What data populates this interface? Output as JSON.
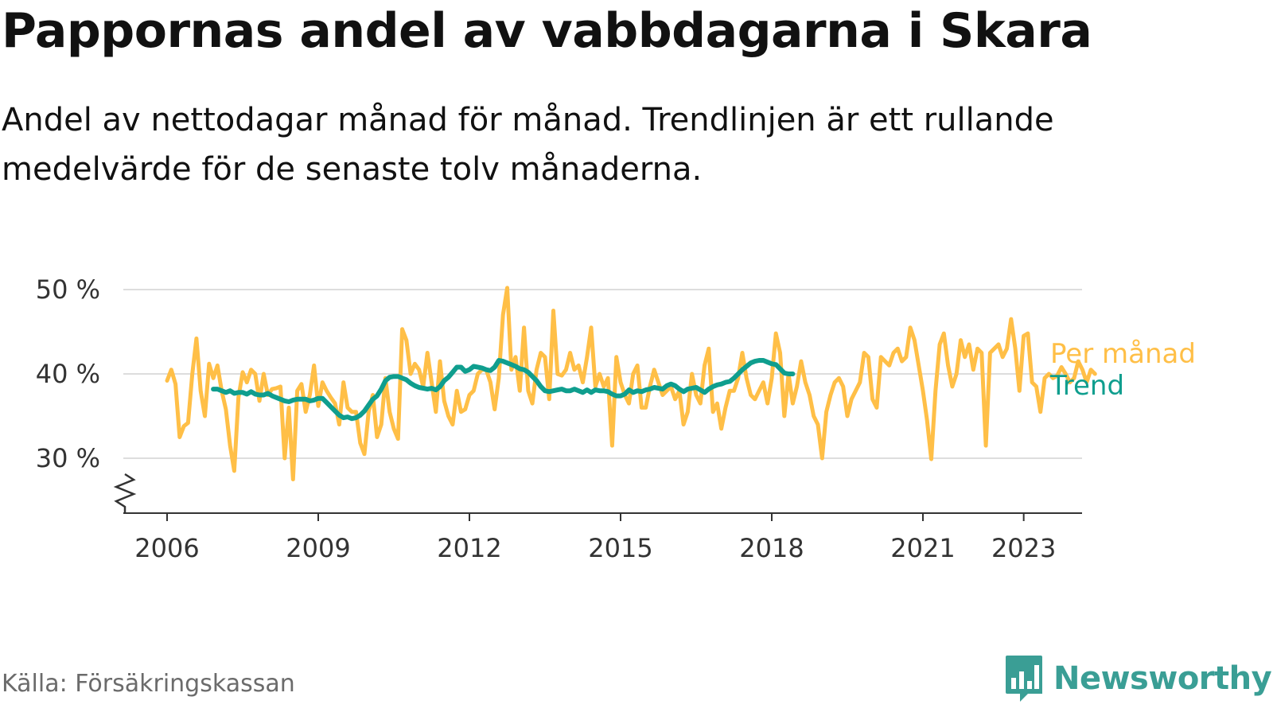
{
  "header": {
    "title": "Pappornas andel av vabbdagarna i Skara",
    "subtitle": "Andel av nettodagar månad för månad. Trendlinjen är ett rullande medelvärde för de senaste tolv månaderna."
  },
  "footer": {
    "source": "Källa: Försäkringskassan",
    "brand": "Newsworthy",
    "brand_icon": "bar-chart-speech-bubble-icon"
  },
  "colors": {
    "monthly": "#ffbf47",
    "trend": "#0f9e8e",
    "grid": "#dddddd",
    "axis": "#333333",
    "brand": "#3a9e95"
  },
  "chart_data": {
    "type": "line",
    "title": "",
    "xlabel": "",
    "ylabel": "",
    "ylim": [
      24,
      50
    ],
    "yticks": [
      30,
      40,
      50
    ],
    "ytick_labels": [
      "30 %",
      "40 %",
      "50 %"
    ],
    "y_axis_break": true,
    "xlim": [
      2005.2,
      2024.2
    ],
    "xticks": [
      2006,
      2009,
      2012,
      2015,
      2018,
      2021,
      2023
    ],
    "xtick_labels": [
      "2006",
      "2009",
      "2012",
      "2015",
      "2018",
      "2021",
      "2023"
    ],
    "grid": true,
    "legend": "right-end",
    "series": [
      {
        "name": "Per månad",
        "color": "#ffbf47",
        "x_start": 2006.0,
        "x_step": 0.08333,
        "values": [
          39.2,
          40.5,
          38.8,
          32.5,
          33.8,
          34.2,
          40.0,
          44.2,
          38.0,
          35.0,
          41.2,
          39.5,
          41.0,
          38.0,
          35.8,
          31.5,
          28.5,
          37.2,
          40.2,
          39.0,
          40.5,
          40.0,
          36.8,
          40.0,
          37.5,
          38.2,
          38.3,
          38.5,
          30.0,
          36.0,
          27.5,
          38.0,
          38.8,
          35.5,
          37.5,
          41.0,
          36.2,
          39.0,
          38.0,
          37.2,
          36.5,
          34.0,
          39.0,
          36.0,
          35.5,
          35.5,
          31.8,
          30.5,
          35.5,
          37.5,
          32.5,
          34.0,
          39.5,
          35.5,
          33.5,
          32.3,
          45.3,
          44.0,
          40.0,
          41.2,
          40.5,
          38.5,
          42.5,
          39.0,
          35.5,
          41.5,
          36.8,
          35.0,
          34.0,
          38.0,
          35.5,
          35.8,
          37.5,
          38.0,
          40.0,
          40.5,
          40.5,
          39.0,
          35.8,
          39.5,
          47.0,
          50.2,
          40.5,
          42.0,
          38.0,
          45.5,
          38.0,
          36.5,
          40.5,
          42.5,
          42.0,
          37.0,
          47.5,
          40.0,
          39.8,
          40.5,
          42.5,
          40.5,
          41.0,
          39.0,
          42.0,
          45.5,
          38.5,
          40.0,
          38.5,
          39.5,
          31.5,
          42.0,
          39.0,
          37.5,
          36.5,
          40.0,
          41.0,
          36.0,
          36.0,
          38.5,
          40.5,
          39.0,
          37.5,
          38.0,
          38.5,
          37.0,
          38.0,
          34.0,
          35.5,
          40.0,
          37.5,
          36.5,
          41.0,
          43.0,
          35.5,
          36.5,
          33.5,
          36.0,
          38.0,
          38.0,
          39.5,
          42.5,
          39.5,
          37.5,
          37.0,
          38.0,
          39.0,
          36.5,
          39.5,
          44.8,
          42.5,
          35.0,
          40.0,
          36.5,
          38.5,
          41.5,
          39.0,
          37.5,
          35.0,
          34.0,
          30.0,
          35.5,
          37.5,
          39.0,
          39.5,
          38.5,
          35.0,
          37.0,
          38.0,
          39.0,
          42.5,
          42.0,
          37.0,
          36.0,
          42.0,
          41.5,
          41.0,
          42.5,
          43.0,
          41.5,
          42.0,
          45.5,
          44.0,
          41.0,
          38.0,
          34.5,
          29.9,
          38.0,
          43.5,
          44.8,
          41.0,
          38.5,
          40.0,
          44.0,
          42.0,
          43.5,
          40.5,
          43.0,
          42.5,
          31.5,
          42.5,
          43.0,
          43.5,
          42.0,
          43.0,
          46.5,
          43.0,
          38.0,
          44.5,
          44.8,
          39.0,
          38.5,
          35.5,
          39.5,
          40.0,
          39.5,
          39.8,
          40.8,
          40.0,
          39.0,
          39.5,
          41.5,
          40.5,
          39.0,
          40.5,
          40.0
        ]
      },
      {
        "name": "Trend",
        "color": "#0f9e8e",
        "x_start": 2006.917,
        "x_step": 0.08333,
        "values": [
          38.2,
          38.2,
          38.0,
          37.8,
          38.0,
          37.7,
          37.8,
          37.8,
          37.6,
          37.9,
          37.6,
          37.5,
          37.5,
          37.7,
          37.4,
          37.2,
          37.0,
          36.8,
          36.7,
          36.9,
          37.0,
          37.0,
          37.0,
          36.8,
          36.9,
          37.1,
          37.1,
          36.6,
          36.1,
          35.6,
          35.1,
          34.8,
          34.9,
          34.7,
          34.8,
          35.1,
          35.6,
          36.3,
          37.0,
          37.4,
          38.2,
          39.2,
          39.6,
          39.7,
          39.7,
          39.5,
          39.3,
          38.9,
          38.6,
          38.4,
          38.3,
          38.2,
          38.3,
          38.1,
          38.5,
          39.2,
          39.6,
          40.2,
          40.8,
          40.8,
          40.3,
          40.5,
          40.9,
          40.8,
          40.7,
          40.5,
          40.4,
          40.8,
          41.6,
          41.5,
          41.3,
          41.1,
          40.9,
          40.6,
          40.5,
          40.2,
          39.7,
          39.2,
          38.5,
          38.0,
          37.9,
          38.0,
          38.1,
          38.2,
          38.0,
          38.0,
          38.2,
          38.0,
          37.8,
          38.1,
          37.8,
          38.1,
          38.0,
          38.0,
          37.9,
          37.6,
          37.4,
          37.4,
          37.6,
          38.1,
          37.8,
          38.0,
          37.9,
          38.1,
          38.2,
          38.4,
          38.3,
          38.2,
          38.6,
          38.8,
          38.6,
          38.2,
          37.9,
          38.2,
          38.3,
          38.4,
          38.1,
          37.8,
          38.2,
          38.5,
          38.7,
          38.8,
          39.0,
          39.1,
          39.5,
          40.0,
          40.5,
          40.9,
          41.3,
          41.5,
          41.6,
          41.6,
          41.4,
          41.2,
          41.1,
          40.6,
          40.1,
          40.0,
          40.0
        ]
      }
    ]
  }
}
